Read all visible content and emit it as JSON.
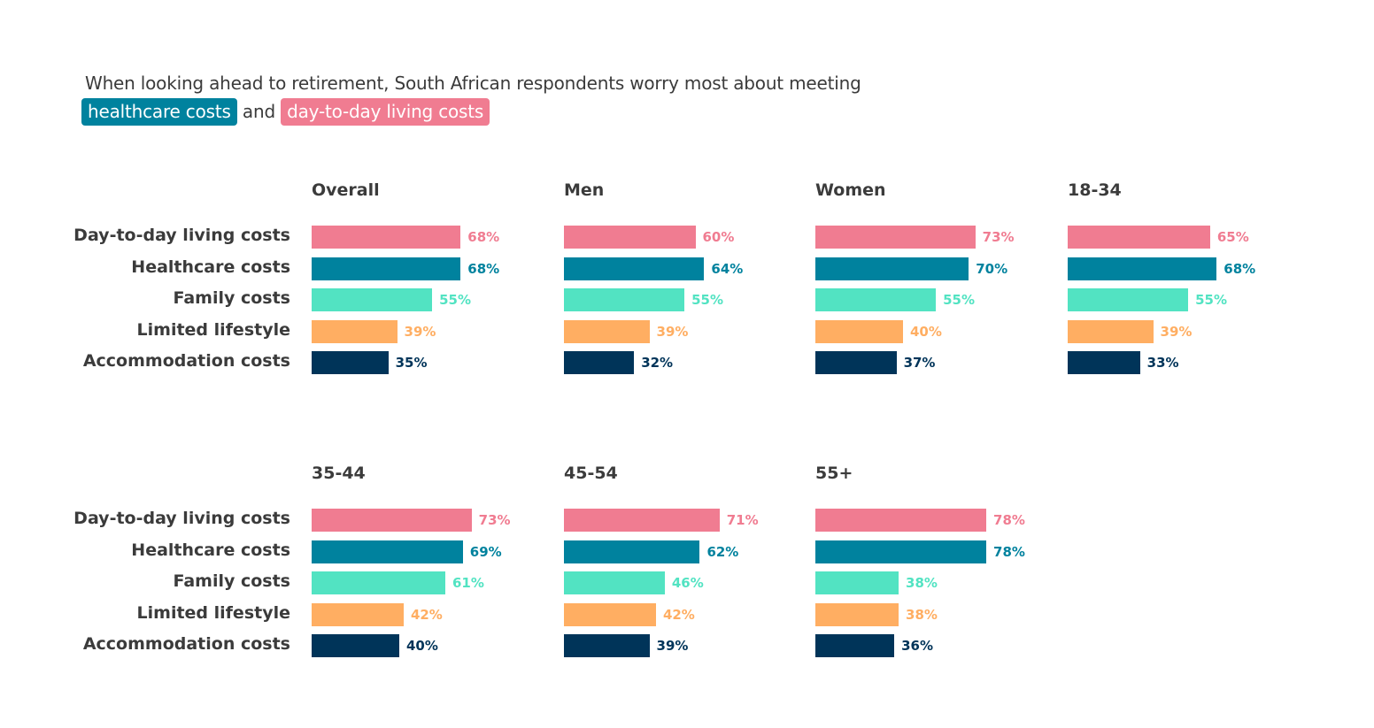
{
  "headline": {
    "text": "When looking ahead to retirement, South African respondents worry most about meeting",
    "highlight_1": "healthcare costs",
    "connector": "and",
    "highlight_2": "day-to-day living costs"
  },
  "colors": {
    "Day-to-day living costs": "#f07c91",
    "Healthcare costs": "#00829e",
    "Family costs": "#52e3c2",
    "Limited lifestyle": "#ffae62",
    "Accommodation costs": "#003459"
  },
  "chart_data": {
    "type": "bar",
    "orientation": "horizontal",
    "title": "When looking ahead to retirement, South African respondents worry most about meeting healthcare costs and day-to-day living costs",
    "categories": [
      "Day-to-day living costs",
      "Healthcare costs",
      "Family costs",
      "Limited lifestyle",
      "Accommodation costs"
    ],
    "unit": "%",
    "xlim": [
      0,
      100
    ],
    "grid": false,
    "panels": [
      {
        "name": "Overall",
        "values": [
          68,
          68,
          55,
          39,
          35
        ]
      },
      {
        "name": "Men",
        "values": [
          60,
          64,
          55,
          39,
          32
        ]
      },
      {
        "name": "Women",
        "values": [
          73,
          70,
          55,
          40,
          37
        ]
      },
      {
        "name": "18-34",
        "values": [
          65,
          68,
          55,
          39,
          33
        ]
      },
      {
        "name": "35-44",
        "values": [
          73,
          69,
          61,
          42,
          40
        ]
      },
      {
        "name": "45-54",
        "values": [
          71,
          62,
          46,
          42,
          39
        ]
      },
      {
        "name": "55+",
        "values": [
          78,
          78,
          38,
          38,
          36
        ]
      }
    ]
  }
}
